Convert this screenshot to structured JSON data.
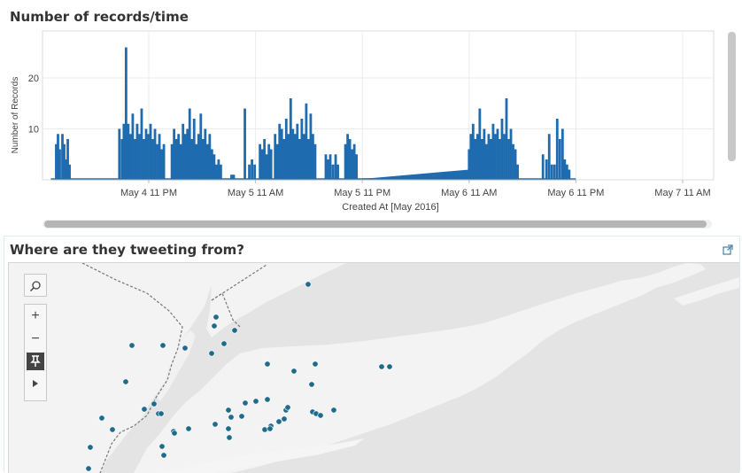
{
  "chart_panel": {
    "title": "Number of records/time"
  },
  "chart_data": {
    "type": "bar",
    "title": "Number of records/time",
    "xlabel": "Created At [May 2016]",
    "ylabel": "Number of Records",
    "ylim": [
      0,
      27
    ],
    "yticks": [
      "10",
      "20"
    ],
    "xticks": [
      "May 4 11 PM",
      "May 5 11 AM",
      "May 5 11 PM",
      "May 6 11 AM",
      "May 6 11 PM",
      "May 7 11 AM"
    ],
    "x_hours_range": [
      -14.5,
      48
    ],
    "color": "#1f6bb0",
    "bars": [
      {
        "h": -10.4,
        "v": 7
      },
      {
        "h": -10.2,
        "v": 9
      },
      {
        "h": -10.0,
        "v": 6
      },
      {
        "h": -9.7,
        "v": 9
      },
      {
        "h": -9.5,
        "v": 7
      },
      {
        "h": -9.3,
        "v": 4
      },
      {
        "h": -9.1,
        "v": 8
      },
      {
        "h": -8.9,
        "v": 3
      },
      {
        "h": -3.3,
        "v": 10
      },
      {
        "h": -3.0,
        "v": 8
      },
      {
        "h": -2.8,
        "v": 11
      },
      {
        "h": -2.55,
        "v": 26
      },
      {
        "h": -2.3,
        "v": 11
      },
      {
        "h": -2.05,
        "v": 9
      },
      {
        "h": -1.8,
        "v": 13
      },
      {
        "h": -1.55,
        "v": 8
      },
      {
        "h": -1.3,
        "v": 11
      },
      {
        "h": -1.05,
        "v": 9
      },
      {
        "h": -0.8,
        "v": 14
      },
      {
        "h": -0.55,
        "v": 8
      },
      {
        "h": -0.3,
        "v": 10
      },
      {
        "h": -0.05,
        "v": 9
      },
      {
        "h": 0.2,
        "v": 11
      },
      {
        "h": 0.45,
        "v": 8
      },
      {
        "h": 0.7,
        "v": 10
      },
      {
        "h": 0.95,
        "v": 7
      },
      {
        "h": 1.2,
        "v": 9
      },
      {
        "h": 1.45,
        "v": 6
      },
      {
        "h": 1.7,
        "v": 7
      },
      {
        "h": 2.6,
        "v": 7
      },
      {
        "h": 2.85,
        "v": 10
      },
      {
        "h": 3.1,
        "v": 8
      },
      {
        "h": 3.35,
        "v": 9
      },
      {
        "h": 3.6,
        "v": 7
      },
      {
        "h": 3.85,
        "v": 11
      },
      {
        "h": 4.1,
        "v": 9
      },
      {
        "h": 4.35,
        "v": 10
      },
      {
        "h": 4.6,
        "v": 14
      },
      {
        "h": 4.85,
        "v": 8
      },
      {
        "h": 5.1,
        "v": 12
      },
      {
        "h": 5.35,
        "v": 7
      },
      {
        "h": 5.6,
        "v": 9
      },
      {
        "h": 5.85,
        "v": 13
      },
      {
        "h": 6.1,
        "v": 8
      },
      {
        "h": 6.35,
        "v": 10
      },
      {
        "h": 6.6,
        "v": 7
      },
      {
        "h": 6.85,
        "v": 9
      },
      {
        "h": 7.1,
        "v": 6
      },
      {
        "h": 7.35,
        "v": 5
      },
      {
        "h": 7.6,
        "v": 3
      },
      {
        "h": 7.85,
        "v": 4
      },
      {
        "h": 8.1,
        "v": 3
      },
      {
        "h": 9.3,
        "v": 1
      },
      {
        "h": 9.55,
        "v": 1
      },
      {
        "h": 10.8,
        "v": 14
      },
      {
        "h": 11.3,
        "v": 3
      },
      {
        "h": 11.6,
        "v": 4
      },
      {
        "h": 11.9,
        "v": 3
      },
      {
        "h": 12.5,
        "v": 7
      },
      {
        "h": 12.75,
        "v": 6
      },
      {
        "h": 13.0,
        "v": 8
      },
      {
        "h": 13.25,
        "v": 5
      },
      {
        "h": 13.5,
        "v": 7
      },
      {
        "h": 13.75,
        "v": 6
      },
      {
        "h": 14.2,
        "v": 9
      },
      {
        "h": 14.45,
        "v": 7
      },
      {
        "h": 14.7,
        "v": 11
      },
      {
        "h": 14.95,
        "v": 10
      },
      {
        "h": 15.2,
        "v": 8
      },
      {
        "h": 15.45,
        "v": 12
      },
      {
        "h": 15.7,
        "v": 9
      },
      {
        "h": 15.95,
        "v": 16
      },
      {
        "h": 16.2,
        "v": 10
      },
      {
        "h": 16.45,
        "v": 9
      },
      {
        "h": 16.7,
        "v": 11
      },
      {
        "h": 16.95,
        "v": 8
      },
      {
        "h": 17.2,
        "v": 12
      },
      {
        "h": 17.45,
        "v": 9
      },
      {
        "h": 17.7,
        "v": 15
      },
      {
        "h": 17.95,
        "v": 8
      },
      {
        "h": 18.2,
        "v": 13
      },
      {
        "h": 18.45,
        "v": 9
      },
      {
        "h": 18.7,
        "v": 7
      },
      {
        "h": 19.9,
        "v": 5
      },
      {
        "h": 20.15,
        "v": 4
      },
      {
        "h": 20.4,
        "v": 5
      },
      {
        "h": 20.7,
        "v": 3
      },
      {
        "h": 21.0,
        "v": 5
      },
      {
        "h": 21.25,
        "v": 3
      },
      {
        "h": 22.1,
        "v": 7
      },
      {
        "h": 22.35,
        "v": 9
      },
      {
        "h": 22.6,
        "v": 8
      },
      {
        "h": 22.85,
        "v": 6
      },
      {
        "h": 23.1,
        "v": 7
      },
      {
        "h": 23.35,
        "v": 5
      },
      {
        "h": 36.0,
        "v": 6
      },
      {
        "h": 36.2,
        "v": 9
      },
      {
        "h": 36.45,
        "v": 11
      },
      {
        "h": 36.7,
        "v": 8
      },
      {
        "h": 36.95,
        "v": 9
      },
      {
        "h": 37.2,
        "v": 14
      },
      {
        "h": 37.45,
        "v": 8
      },
      {
        "h": 37.7,
        "v": 10
      },
      {
        "h": 37.95,
        "v": 7
      },
      {
        "h": 38.2,
        "v": 9
      },
      {
        "h": 38.45,
        "v": 8
      },
      {
        "h": 38.7,
        "v": 11
      },
      {
        "h": 38.95,
        "v": 9
      },
      {
        "h": 39.2,
        "v": 10
      },
      {
        "h": 39.45,
        "v": 8
      },
      {
        "h": 39.7,
        "v": 12
      },
      {
        "h": 39.95,
        "v": 9
      },
      {
        "h": 40.2,
        "v": 16
      },
      {
        "h": 40.45,
        "v": 8
      },
      {
        "h": 40.7,
        "v": 10
      },
      {
        "h": 40.95,
        "v": 7
      },
      {
        "h": 41.2,
        "v": 6
      },
      {
        "h": 41.45,
        "v": 3
      },
      {
        "h": 44.3,
        "v": 5
      },
      {
        "h": 44.7,
        "v": 4
      },
      {
        "h": 45.0,
        "v": 9
      },
      {
        "h": 45.3,
        "v": 3
      },
      {
        "h": 45.6,
        "v": 3
      },
      {
        "h": 45.9,
        "v": 12
      },
      {
        "h": 46.2,
        "v": 8
      },
      {
        "h": 46.5,
        "v": 10
      },
      {
        "h": 46.75,
        "v": 4
      },
      {
        "h": 47.0,
        "v": 3
      },
      {
        "h": 47.25,
        "v": 2
      }
    ],
    "baseline_segments": [
      [
        -11,
        48
      ],
      [
        24,
        36
      ]
    ]
  },
  "map_panel": {
    "title": "Where are they tweeting from?",
    "popout_icon": "external-link-icon",
    "dot_color": "#1f6b8c",
    "controls": [
      "search-icon",
      "zoom-in-icon",
      "zoom-out-icon",
      "pin-icon",
      "play-icon"
    ]
  },
  "map_points": [
    [
      347,
      320
    ],
    [
      243,
      357
    ],
    [
      241,
      367
    ],
    [
      264,
      372
    ],
    [
      252,
      387
    ],
    [
      238,
      398
    ],
    [
      148,
      389
    ],
    [
      183,
      389
    ],
    [
      208,
      392
    ],
    [
      141,
      430
    ],
    [
      301,
      410
    ],
    [
      331,
      418
    ],
    [
      355,
      410
    ],
    [
      430,
      413
    ],
    [
      439,
      413
    ],
    [
      351,
      433
    ],
    [
      114,
      471
    ],
    [
      126,
      484
    ],
    [
      162,
      461
    ],
    [
      173,
      455
    ],
    [
      178,
      466
    ],
    [
      181,
      466
    ],
    [
      195,
      486
    ],
    [
      196,
      488
    ],
    [
      212,
      483
    ],
    [
      242,
      478
    ],
    [
      257,
      462
    ],
    [
      260,
      470
    ],
    [
      257,
      483
    ],
    [
      258,
      493
    ],
    [
      272,
      469
    ],
    [
      276,
      454
    ],
    [
      288,
      452
    ],
    [
      301,
      450
    ],
    [
      322,
      462
    ],
    [
      324,
      459
    ],
    [
      320,
      472
    ],
    [
      314,
      475
    ],
    [
      305,
      480
    ],
    [
      298,
      484
    ],
    [
      304,
      483
    ],
    [
      352,
      464
    ],
    [
      356,
      466
    ],
    [
      361,
      468
    ],
    [
      376,
      462
    ],
    [
      101,
      504
    ],
    [
      182,
      503
    ],
    [
      184,
      513
    ],
    [
      99,
      528
    ]
  ]
}
